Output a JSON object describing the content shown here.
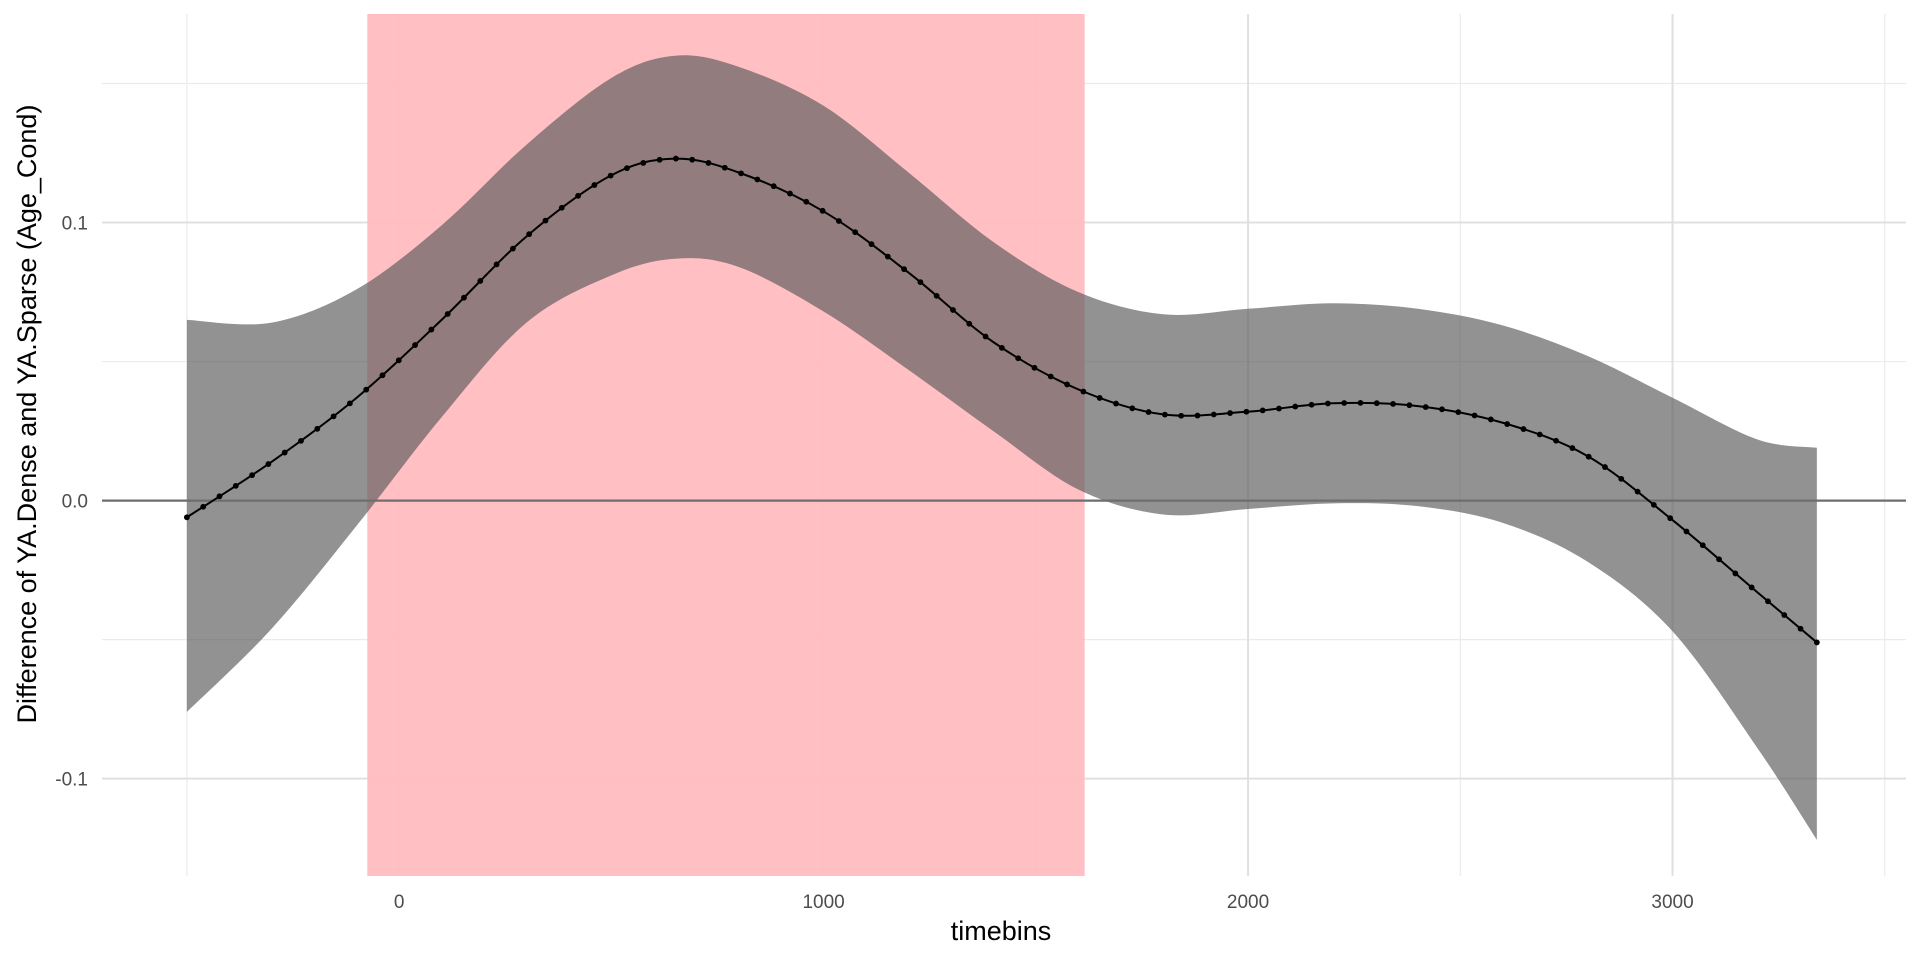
{
  "chart_data": {
    "type": "line",
    "title": "",
    "xlabel": "timebins",
    "ylabel": "Difference of YA.Dense and YA.Sparse (Age_Cond)",
    "xlim": [
      -700,
      3550
    ],
    "ylim": [
      -0.135,
      0.175
    ],
    "x_ticks": [
      0,
      1000,
      2000,
      3000
    ],
    "x_tick_labels": [
      "0",
      "1000",
      "2000",
      "3000"
    ],
    "x_minor_ticks": [
      -500,
      500,
      1500,
      2500,
      3500
    ],
    "y_ticks": [
      -0.1,
      0.0,
      0.1
    ],
    "y_tick_labels": [
      "-0.1",
      "0.0",
      "0.1"
    ],
    "y_minor_ticks": [
      -0.05,
      0.05,
      0.15
    ],
    "grid": true,
    "highlight_region": {
      "x_start": -75,
      "x_end": 1615,
      "color": "#ffbcc0"
    },
    "reference_line_y": 0,
    "ribbon_color": "#666666",
    "line_color": "#000000",
    "series": [
      {
        "x": [
          -500,
          -300,
          -100,
          100,
          300,
          500,
          650,
          800,
          1000,
          1200,
          1400,
          1600,
          1800,
          2000,
          2200,
          2400,
          2600,
          2800,
          3000,
          3200,
          3340
        ],
        "fit": [
          -0.006,
          0.014,
          0.037,
          0.065,
          0.095,
          0.117,
          0.123,
          0.118,
          0.104,
          0.082,
          0.057,
          0.04,
          0.031,
          0.032,
          0.035,
          0.034,
          0.028,
          0.016,
          -0.007,
          -0.033,
          -0.051
        ],
        "upper": [
          0.065,
          0.064,
          0.076,
          0.099,
          0.128,
          0.152,
          0.16,
          0.156,
          0.142,
          0.118,
          0.093,
          0.075,
          0.067,
          0.069,
          0.071,
          0.069,
          0.063,
          0.052,
          0.037,
          0.022,
          0.019
        ],
        "lower": [
          -0.076,
          -0.046,
          -0.009,
          0.03,
          0.064,
          0.081,
          0.087,
          0.084,
          0.068,
          0.047,
          0.025,
          0.004,
          -0.005,
          -0.003,
          -0.001,
          -0.002,
          -0.008,
          -0.022,
          -0.047,
          -0.089,
          -0.122
        ]
      }
    ]
  }
}
